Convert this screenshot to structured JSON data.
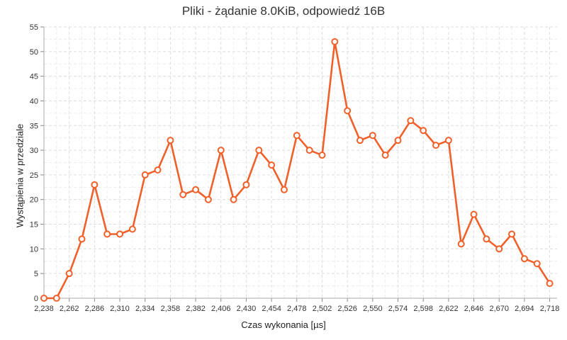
{
  "chart_data": {
    "type": "line",
    "title": "Pliki - żądanie 8.0KiB, odpowiedź 16B",
    "xlabel": "Czas wykonania [µs]",
    "ylabel": "Wystąpienia w przedziale",
    "x_tick_labels": [
      "2,238",
      "2,262",
      "2,286",
      "2,310",
      "2,334",
      "2,358",
      "2,382",
      "2,406",
      "2,430",
      "2,454",
      "2,478",
      "2,502",
      "2,526",
      "2,550",
      "2,574",
      "2,598",
      "2,622",
      "2,646",
      "2,670",
      "2,694",
      "2,718"
    ],
    "x_ticks": [
      2238,
      2262,
      2286,
      2310,
      2334,
      2358,
      2382,
      2406,
      2430,
      2454,
      2478,
      2502,
      2526,
      2550,
      2574,
      2598,
      2622,
      2646,
      2670,
      2694,
      2718
    ],
    "y_ticks": [
      0,
      5,
      10,
      15,
      20,
      25,
      30,
      35,
      40,
      45,
      50,
      55
    ],
    "xlim": [
      2238,
      2725
    ],
    "ylim": [
      0,
      55
    ],
    "grid": true,
    "legend": "none",
    "series": [
      {
        "color": "#f0602a",
        "x": [
          2238,
          2250,
          2262,
          2274,
          2286,
          2298,
          2310,
          2322,
          2334,
          2346,
          2358,
          2370,
          2382,
          2394,
          2406,
          2418,
          2430,
          2442,
          2454,
          2466,
          2478,
          2490,
          2502,
          2514,
          2526,
          2538,
          2550,
          2562,
          2574,
          2586,
          2598,
          2610,
          2622,
          2634,
          2646,
          2658,
          2670,
          2682,
          2694,
          2706,
          2718
        ],
        "values": [
          0,
          0,
          5,
          12,
          23,
          13,
          13,
          14,
          25,
          26,
          32,
          21,
          22,
          20,
          30,
          20,
          23,
          30,
          27,
          22,
          33,
          30,
          29,
          52,
          38,
          32,
          33,
          29,
          32,
          36,
          34,
          31,
          32,
          11,
          17,
          12,
          10,
          13,
          8,
          7,
          3
        ]
      }
    ]
  }
}
